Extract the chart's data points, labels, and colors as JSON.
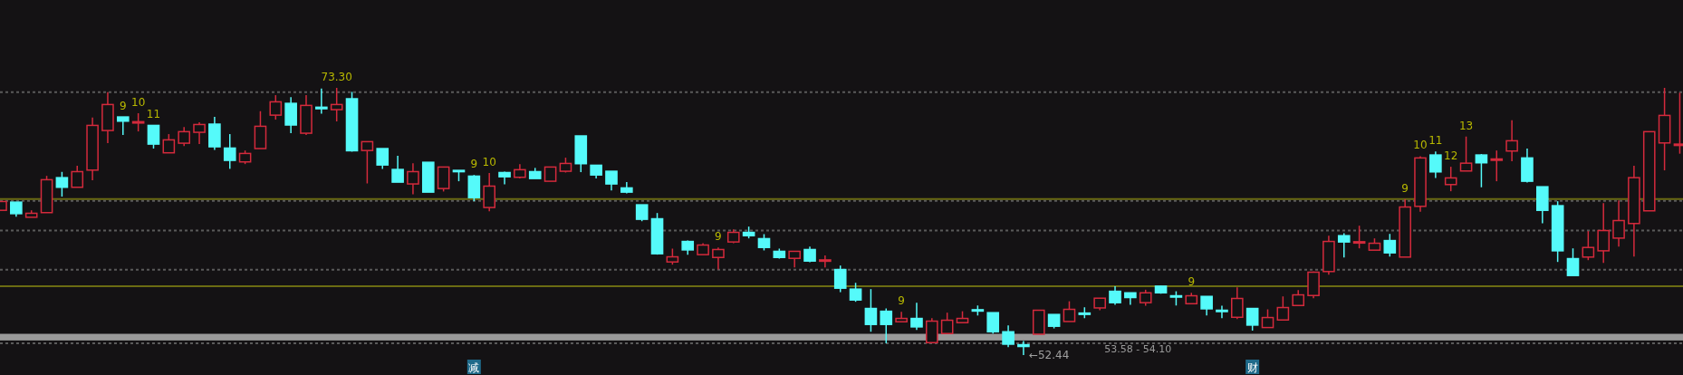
{
  "chart_data": {
    "type": "candlestick",
    "categories": [
      null,
      null,
      null,
      null,
      null,
      null,
      null,
      null,
      null,
      null,
      null,
      null,
      null,
      null,
      null,
      null,
      null,
      null,
      null,
      null,
      null,
      null,
      null,
      null,
      null,
      null,
      null,
      null,
      null,
      null,
      null,
      "减",
      null,
      null,
      null,
      null,
      null,
      null,
      null,
      null,
      null,
      null,
      null,
      null,
      null,
      null,
      null,
      null,
      null,
      null,
      null,
      null,
      null,
      null,
      null,
      null,
      null,
      null,
      null,
      null,
      null,
      null,
      null,
      null,
      null,
      null,
      null,
      null,
      null,
      null,
      null,
      null,
      null,
      null,
      null,
      null,
      null,
      null,
      null,
      null,
      null,
      null,
      "财",
      null,
      null,
      null,
      null,
      null,
      null,
      null,
      null,
      null,
      null,
      null,
      null,
      null,
      null,
      null,
      null,
      null,
      null,
      null,
      null,
      null,
      null,
      null,
      null,
      null,
      null,
      null,
      null
    ],
    "ohlc": [
      [
        63.74,
        64.43,
        63.74,
        64.43
      ],
      [
        64.38,
        64.38,
        63.25,
        63.48
      ],
      [
        63.2,
        63.74,
        63.2,
        63.51
      ],
      [
        63.56,
        66.43,
        63.56,
        66.13
      ],
      [
        66.29,
        66.74,
        64.81,
        65.54
      ],
      [
        65.54,
        67.21,
        65.54,
        66.76
      ],
      [
        66.88,
        70.99,
        66.08,
        70.37
      ],
      [
        69.97,
        72.97,
        68.98,
        72.0
      ],
      [
        71.03,
        71.03,
        69.62,
        70.7
      ],
      [
        70.63,
        71.32,
        69.9,
        70.66
      ],
      [
        70.37,
        70.37,
        68.56,
        68.91
      ],
      [
        68.23,
        69.69,
        68.23,
        69.24
      ],
      [
        68.98,
        70.25,
        68.75,
        69.88
      ],
      [
        69.83,
        70.61,
        68.91,
        70.44
      ],
      [
        70.47,
        71.03,
        68.46,
        68.7
      ],
      [
        68.6,
        69.69,
        66.98,
        67.64
      ],
      [
        67.52,
        68.41,
        67.35,
        68.18
      ],
      [
        68.56,
        71.48,
        68.56,
        70.3
      ],
      [
        71.17,
        72.73,
        70.82,
        72.21
      ],
      [
        72.09,
        72.57,
        69.76,
        70.4
      ],
      [
        69.76,
        72.73,
        69.62,
        71.93
      ],
      [
        71.79,
        73.25,
        71.29,
        71.67
      ],
      [
        71.6,
        73.3,
        70.68,
        72.0
      ],
      [
        72.45,
        72.99,
        68.32,
        68.39
      ],
      [
        68.41,
        69.1,
        65.84,
        69.1
      ],
      [
        68.56,
        68.56,
        66.98,
        67.28
      ],
      [
        66.93,
        67.99,
        65.94,
        65.94
      ],
      [
        65.8,
        67.42,
        65.0,
        66.76
      ],
      [
        67.49,
        67.49,
        65.16,
        65.16
      ],
      [
        65.44,
        67.14,
        65.21,
        67.12
      ],
      [
        66.86,
        66.86,
        66.01,
        66.76
      ],
      [
        66.41,
        66.5,
        64.45,
        64.73
      ],
      [
        63.96,
        66.65,
        63.67,
        65.63
      ],
      [
        66.69,
        66.76,
        65.77,
        66.36
      ],
      [
        66.32,
        67.35,
        66.22,
        66.91
      ],
      [
        66.76,
        67.05,
        66.22,
        66.22
      ],
      [
        66.01,
        67.12,
        66.01,
        67.12
      ],
      [
        66.79,
        67.85,
        66.69,
        67.4
      ],
      [
        69.55,
        69.55,
        66.72,
        67.38
      ],
      [
        67.26,
        67.26,
        66.22,
        66.5
      ],
      [
        66.79,
        66.79,
        65.3,
        65.8
      ],
      [
        65.49,
        65.94,
        65.06,
        65.16
      ],
      [
        64.17,
        64.17,
        62.89,
        63.04
      ],
      [
        63.08,
        63.53,
        60.28,
        60.35
      ],
      [
        59.71,
        60.75,
        59.5,
        60.11
      ],
      [
        61.31,
        61.38,
        60.28,
        60.65
      ],
      [
        60.28,
        61.17,
        60.28,
        61.03
      ],
      [
        60.06,
        60.84,
        59.12,
        60.68
      ],
      [
        61.27,
        62.26,
        61.17,
        62.02
      ],
      [
        62.02,
        62.47,
        61.55,
        61.76
      ],
      [
        61.53,
        61.88,
        60.61,
        60.84
      ],
      [
        60.54,
        60.75,
        59.97,
        60.06
      ],
      [
        59.99,
        60.54,
        59.29,
        60.54
      ],
      [
        60.68,
        60.91,
        59.69,
        59.78
      ],
      [
        59.83,
        60.21,
        59.29,
        59.87
      ],
      [
        59.12,
        59.43,
        57.35,
        57.66
      ],
      [
        57.59,
        58.08,
        56.6,
        56.74
      ],
      [
        56.08,
        57.59,
        54.26,
        54.83
      ],
      [
        55.86,
        56.08,
        53.36,
        54.83
      ],
      [
        55.04,
        55.82,
        55.04,
        55.3
      ],
      [
        55.3,
        56.53,
        54.4,
        54.64
      ],
      [
        53.41,
        55.32,
        53.41,
        55.09
      ],
      [
        54.12,
        55.75,
        54.12,
        55.16
      ],
      [
        54.97,
        55.86,
        54.97,
        55.3
      ],
      [
        55.98,
        56.31,
        55.53,
        55.94
      ],
      [
        55.75,
        55.75,
        54.12,
        54.26
      ],
      [
        54.26,
        54.76,
        53.06,
        53.29
      ],
      [
        53.25,
        53.53,
        52.44,
        53.11
      ],
      [
        54.07,
        55.94,
        54.07,
        55.94
      ],
      [
        55.61,
        55.61,
        54.52,
        54.69
      ],
      [
        55.06,
        56.64,
        55.06,
        56.01
      ],
      [
        55.72,
        56.17,
        55.32,
        55.65
      ],
      [
        56.12,
        56.88,
        55.94,
        56.88
      ],
      [
        57.42,
        57.82,
        56.36,
        56.53
      ],
      [
        57.3,
        57.3,
        56.36,
        56.93
      ],
      [
        56.53,
        57.54,
        56.29,
        57.3
      ],
      [
        57.82,
        57.85,
        57.23,
        57.3
      ],
      [
        57.07,
        57.42,
        56.31,
        56.97
      ],
      [
        56.45,
        57.3,
        56.45,
        57.07
      ],
      [
        57.02,
        57.02,
        55.53,
        56.05
      ],
      [
        55.94,
        56.29,
        55.32,
        55.84
      ],
      [
        55.39,
        57.73,
        55.25,
        56.86
      ],
      [
        56.08,
        56.08,
        54.35,
        54.78
      ],
      [
        54.59,
        56.01,
        54.59,
        55.37
      ],
      [
        55.18,
        57.02,
        55.18,
        56.15
      ],
      [
        56.31,
        57.52,
        56.31,
        57.14
      ],
      [
        57.09,
        58.96,
        56.88,
        58.91
      ],
      [
        58.96,
        61.76,
        58.72,
        61.31
      ],
      [
        61.76,
        61.95,
        60.06,
        61.27
      ],
      [
        61.24,
        62.54,
        60.77,
        61.29
      ],
      [
        60.63,
        61.55,
        60.63,
        61.17
      ],
      [
        61.38,
        61.9,
        60.13,
        60.42
      ],
      [
        60.09,
        64.62,
        60.09,
        64.0
      ],
      [
        64.05,
        67.97,
        63.63,
        67.83
      ],
      [
        68.06,
        68.34,
        66.27,
        66.74
      ],
      [
        65.75,
        67.14,
        65.23,
        66.27
      ],
      [
        66.81,
        69.5,
        66.81,
        67.42
      ],
      [
        68.06,
        68.13,
        65.54,
        67.45
      ],
      [
        67.71,
        68.41,
        66.01,
        67.75
      ],
      [
        68.37,
        70.77,
        67.57,
        69.17
      ],
      [
        67.83,
        68.56,
        65.91,
        66.01
      ],
      [
        65.58,
        65.58,
        62.73,
        63.74
      ],
      [
        64.1,
        64.45,
        59.71,
        60.58
      ],
      [
        59.97,
        60.77,
        58.65,
        58.65
      ],
      [
        60.09,
        62.12,
        59.85,
        60.84
      ],
      [
        60.58,
        64.31,
        59.64,
        62.16
      ],
      [
        61.57,
        64.52,
        60.91,
        62.94
      ],
      [
        62.71,
        67.21,
        60.13,
        66.29
      ],
      [
        63.7,
        69.88,
        63.7,
        69.88
      ],
      [
        69.0,
        73.3,
        66.86,
        71.15
      ],
      [
        68.82,
        72.92,
        68.16,
        68.91
      ]
    ],
    "colors": [
      "#d42a3c",
      "#55fafa",
      "#d42a3c",
      "#d42a3c",
      "#55fafa",
      "#d42a3c",
      "#d42a3c",
      "#d42a3c",
      "#55fafa",
      "#d42a3c",
      "#55fafa",
      "#d42a3c",
      "#d42a3c",
      "#d42a3c",
      "#55fafa",
      "#55fafa",
      "#d42a3c",
      "#d42a3c",
      "#d42a3c",
      "#55fafa",
      "#d42a3c",
      "#55fafa",
      "#d42a3c",
      "#55fafa",
      "#d42a3c",
      "#55fafa",
      "#55fafa",
      "#d42a3c",
      "#55fafa",
      "#d42a3c",
      "#55fafa",
      "#55fafa",
      "#d42a3c",
      "#55fafa",
      "#d42a3c",
      "#55fafa",
      "#d42a3c",
      "#d42a3c",
      "#55fafa",
      "#55fafa",
      "#55fafa",
      "#55fafa",
      "#55fafa",
      "#55fafa",
      "#d42a3c",
      "#55fafa",
      "#d42a3c",
      "#d42a3c",
      "#d42a3c",
      "#55fafa",
      "#55fafa",
      "#55fafa",
      "#d42a3c",
      "#55fafa",
      "#d42a3c",
      "#55fafa",
      "#55fafa",
      "#55fafa",
      "#55fafa",
      "#d42a3c",
      "#55fafa",
      "#d42a3c",
      "#d42a3c",
      "#d42a3c",
      "#55fafa",
      "#55fafa",
      "#55fafa",
      "#55fafa",
      "#d42a3c",
      "#55fafa",
      "#d42a3c",
      "#55fafa",
      "#d42a3c",
      "#55fafa",
      "#55fafa",
      "#d42a3c",
      "#55fafa",
      "#55fafa",
      "#d42a3c",
      "#55fafa",
      "#55fafa",
      "#d42a3c",
      "#55fafa",
      "#d42a3c",
      "#d42a3c",
      "#d42a3c",
      "#d42a3c",
      "#d42a3c",
      "#55fafa",
      "#d42a3c",
      "#d42a3c",
      "#55fafa",
      "#d42a3c",
      "#d42a3c",
      "#55fafa",
      "#d42a3c",
      "#d42a3c",
      "#55fafa",
      "#d42a3c",
      "#d42a3c",
      "#55fafa",
      "#55fafa",
      "#55fafa",
      "#55fafa",
      "#d42a3c",
      "#d42a3c",
      "#d42a3c",
      "#d42a3c",
      "#d42a3c",
      "#d42a3c",
      "#d42a3c"
    ],
    "value_labels": [
      null,
      null,
      null,
      null,
      null,
      null,
      null,
      null,
      "9",
      "10",
      "11",
      null,
      null,
      null,
      null,
      null,
      null,
      null,
      null,
      null,
      null,
      null,
      "73.30",
      null,
      null,
      null,
      null,
      null,
      null,
      null,
      null,
      "9",
      "10",
      null,
      null,
      null,
      null,
      null,
      null,
      null,
      null,
      null,
      null,
      null,
      null,
      null,
      null,
      "9",
      null,
      null,
      null,
      null,
      null,
      null,
      null,
      null,
      null,
      null,
      null,
      "9",
      null,
      null,
      null,
      null,
      null,
      null,
      null,
      "←52.44",
      null,
      null,
      null,
      null,
      null,
      null,
      null,
      null,
      null,
      null,
      "9",
      null,
      null,
      null,
      null,
      null,
      null,
      null,
      null,
      null,
      null,
      null,
      null,
      null,
      "9",
      "10",
      "11",
      "12",
      "13",
      null,
      null,
      null,
      null,
      null,
      null,
      null,
      null,
      null,
      null,
      null,
      null,
      null,
      null
    ],
    "ref_lines": [
      {
        "axis": "y",
        "value": 72.97,
        "color": "#5a5a5a",
        "line_style": "dotted"
      },
      {
        "axis": "y",
        "value": 64.62,
        "color": "#6b6b12",
        "line_style": "solid"
      },
      {
        "axis": "y",
        "value": 64.47,
        "color": "#5a5a5a",
        "line_style": "dotted"
      },
      {
        "axis": "y",
        "value": 62.16,
        "color": "#5a5a5a",
        "line_style": "dotted"
      },
      {
        "axis": "y",
        "value": 59.1,
        "color": "#5a5a5a",
        "line_style": "dotted"
      },
      {
        "axis": "y",
        "value": 57.82,
        "color": "#6b6b12",
        "line_style": "solid"
      },
      {
        "axis": "y",
        "value": 53.36,
        "color": "#5a5a5a",
        "line_style": "dotted"
      }
    ],
    "bands": [
      {
        "axis": "y",
        "from": 53.58,
        "to": 54.1,
        "label": "53.58 - 54.10",
        "color": "#9a9a9a"
      }
    ]
  }
}
